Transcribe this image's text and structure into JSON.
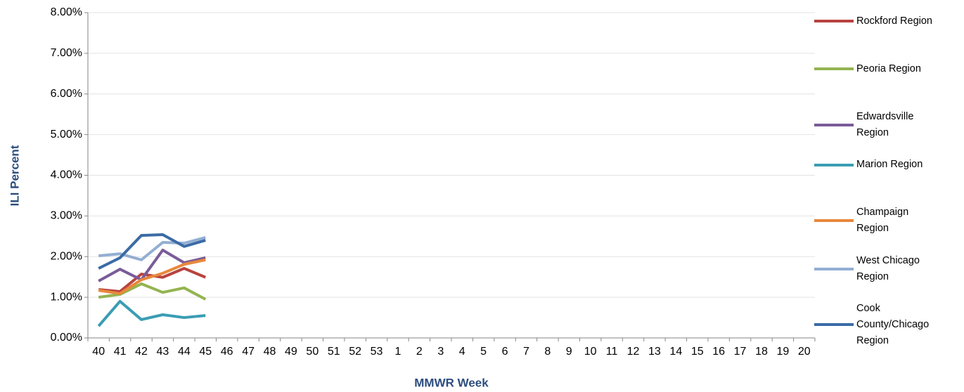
{
  "chart_data": {
    "type": "line",
    "x_label": "MMWR Week",
    "y_label": "ILI Percent",
    "categories": [
      "40",
      "41",
      "42",
      "43",
      "44",
      "45",
      "46",
      "47",
      "48",
      "49",
      "50",
      "51",
      "52",
      "53",
      "1",
      "2",
      "3",
      "4",
      "5",
      "6",
      "7",
      "8",
      "9",
      "10",
      "11",
      "12",
      "13",
      "14",
      "15",
      "16",
      "17",
      "18",
      "19",
      "20"
    ],
    "ylim": [
      0,
      8
    ],
    "yticks": [
      {
        "value": 0,
        "label": "0.00%"
      },
      {
        "value": 1,
        "label": "1.00%"
      },
      {
        "value": 2,
        "label": "2.00%"
      },
      {
        "value": 3,
        "label": "3.00%"
      },
      {
        "value": 4,
        "label": "4.00%"
      },
      {
        "value": 5,
        "label": "5.00%"
      },
      {
        "value": 6,
        "label": "6.00%"
      },
      {
        "value": 7,
        "label": "7.00%"
      },
      {
        "value": 8,
        "label": "8.00%"
      }
    ],
    "grid": true,
    "legend": "right",
    "series": [
      {
        "name": "Rockford Region",
        "color": "#b8433f",
        "values": [
          1.19,
          1.14,
          1.57,
          1.49,
          1.71,
          1.49,
          null,
          null,
          null,
          null,
          null,
          null,
          null,
          null,
          null,
          null,
          null,
          null,
          null,
          null,
          null,
          null,
          null,
          null,
          null,
          null,
          null,
          null,
          null,
          null,
          null,
          null,
          null,
          null
        ]
      },
      {
        "name": "Peoria Region",
        "color": "#93b450",
        "values": [
          1.0,
          1.07,
          1.33,
          1.12,
          1.23,
          0.95,
          null,
          null,
          null,
          null,
          null,
          null,
          null,
          null,
          null,
          null,
          null,
          null,
          null,
          null,
          null,
          null,
          null,
          null,
          null,
          null,
          null,
          null,
          null,
          null,
          null,
          null,
          null,
          null
        ]
      },
      {
        "name": "Edwardsville Region",
        "color": "#7a5c98",
        "values": [
          1.4,
          1.69,
          1.43,
          2.16,
          1.85,
          1.97,
          null,
          null,
          null,
          null,
          null,
          null,
          null,
          null,
          null,
          null,
          null,
          null,
          null,
          null,
          null,
          null,
          null,
          null,
          null,
          null,
          null,
          null,
          null,
          null,
          null,
          null,
          null,
          null
        ]
      },
      {
        "name": "Marion Region",
        "color": "#3a9db4",
        "values": [
          0.29,
          0.9,
          0.45,
          0.57,
          0.5,
          0.55,
          null,
          null,
          null,
          null,
          null,
          null,
          null,
          null,
          null,
          null,
          null,
          null,
          null,
          null,
          null,
          null,
          null,
          null,
          null,
          null,
          null,
          null,
          null,
          null,
          null,
          null,
          null,
          null
        ]
      },
      {
        "name": "Champaign Region",
        "color": "#e8883c",
        "values": [
          1.17,
          1.09,
          1.43,
          1.59,
          1.81,
          1.92,
          null,
          null,
          null,
          null,
          null,
          null,
          null,
          null,
          null,
          null,
          null,
          null,
          null,
          null,
          null,
          null,
          null,
          null,
          null,
          null,
          null,
          null,
          null,
          null,
          null,
          null,
          null,
          null
        ]
      },
      {
        "name": "West Chicago Region",
        "color": "#93aed3",
        "values": [
          2.02,
          2.07,
          1.92,
          2.35,
          2.33,
          2.47,
          null,
          null,
          null,
          null,
          null,
          null,
          null,
          null,
          null,
          null,
          null,
          null,
          null,
          null,
          null,
          null,
          null,
          null,
          null,
          null,
          null,
          null,
          null,
          null,
          null,
          null,
          null,
          null
        ]
      },
      {
        "name": "Cook County/Chicago Region",
        "color": "#3b6ba6",
        "values": [
          1.71,
          1.97,
          2.52,
          2.54,
          2.25,
          2.4,
          null,
          null,
          null,
          null,
          null,
          null,
          null,
          null,
          null,
          null,
          null,
          null,
          null,
          null,
          null,
          null,
          null,
          null,
          null,
          null,
          null,
          null,
          null,
          null,
          null,
          null,
          null,
          null
        ]
      }
    ]
  }
}
